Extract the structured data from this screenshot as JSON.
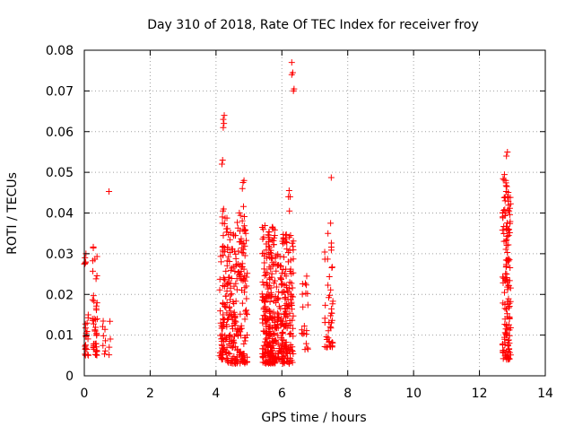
{
  "chart_data": {
    "type": "scatter",
    "title": "Day 310 of 2018, Rate Of TEC Index for receiver froy",
    "xlabel": "GPS time / hours",
    "ylabel": "ROTI / TECUs",
    "xlim": [
      0,
      14
    ],
    "ylim": [
      0,
      0.08
    ],
    "xticks": [
      0,
      2,
      4,
      6,
      8,
      10,
      12,
      14
    ],
    "xtick_labels": [
      "0",
      "2",
      "4",
      "6",
      "8",
      "10",
      "12",
      "14"
    ],
    "yticks": [
      0,
      0.01,
      0.02,
      0.03,
      0.04,
      0.05,
      0.06,
      0.07,
      0.08
    ],
    "ytick_labels": [
      "0",
      "0.01",
      "0.02",
      "0.03",
      "0.04",
      "0.05",
      "0.06",
      "0.07",
      "0.08"
    ],
    "grid": true,
    "marker": "+",
    "marker_color": "#ff0000",
    "clusters": [
      {
        "x": [
          0.0,
          0.12
        ],
        "y": [
          0.005,
          0.015
        ],
        "n": 20
      },
      {
        "x": [
          0.0,
          0.05
        ],
        "y": [
          0.027,
          0.03
        ],
        "n": 3
      },
      {
        "x": [
          0.25,
          0.4
        ],
        "y": [
          0.005,
          0.032
        ],
        "n": 45
      },
      {
        "x": [
          0.5,
          0.8
        ],
        "y": [
          0.005,
          0.014
        ],
        "n": 12
      },
      {
        "x": [
          4.1,
          4.35
        ],
        "y": [
          0.004,
          0.04
        ],
        "n": 90
      },
      {
        "x": [
          4.35,
          4.7
        ],
        "y": [
          0.003,
          0.038
        ],
        "n": 110
      },
      {
        "x": [
          4.7,
          4.95
        ],
        "y": [
          0.003,
          0.042
        ],
        "n": 90
      },
      {
        "x": [
          5.4,
          5.8
        ],
        "y": [
          0.003,
          0.037
        ],
        "n": 230
      },
      {
        "x": [
          5.8,
          6.0
        ],
        "y": [
          0.004,
          0.03
        ],
        "n": 70
      },
      {
        "x": [
          6.0,
          6.35
        ],
        "y": [
          0.003,
          0.035
        ],
        "n": 140
      },
      {
        "x": [
          6.6,
          6.8
        ],
        "y": [
          0.006,
          0.025
        ],
        "n": 20
      },
      {
        "x": [
          7.3,
          7.55
        ],
        "y": [
          0.007,
          0.035
        ],
        "n": 45
      },
      {
        "x": [
          12.7,
          12.95
        ],
        "y": [
          0.004,
          0.05
        ],
        "n": 140
      }
    ],
    "points": [
      {
        "x": 0.0,
        "y": 0.0275
      },
      {
        "x": 0.02,
        "y": 0.029
      },
      {
        "x": 0.05,
        "y": 0.03
      },
      {
        "x": 0.75,
        "y": 0.0453
      },
      {
        "x": 4.18,
        "y": 0.052
      },
      {
        "x": 4.2,
        "y": 0.053
      },
      {
        "x": 4.22,
        "y": 0.061
      },
      {
        "x": 4.24,
        "y": 0.062
      },
      {
        "x": 4.22,
        "y": 0.063
      },
      {
        "x": 4.25,
        "y": 0.064
      },
      {
        "x": 4.21,
        "y": 0.0405
      },
      {
        "x": 4.23,
        "y": 0.041
      },
      {
        "x": 4.8,
        "y": 0.046
      },
      {
        "x": 4.82,
        "y": 0.0475
      },
      {
        "x": 4.85,
        "y": 0.048
      },
      {
        "x": 6.2,
        "y": 0.044
      },
      {
        "x": 6.22,
        "y": 0.0455
      },
      {
        "x": 6.25,
        "y": 0.044
      },
      {
        "x": 6.23,
        "y": 0.0405
      },
      {
        "x": 6.3,
        "y": 0.074
      },
      {
        "x": 6.33,
        "y": 0.0745
      },
      {
        "x": 6.3,
        "y": 0.077
      },
      {
        "x": 6.35,
        "y": 0.07
      },
      {
        "x": 6.37,
        "y": 0.0705
      },
      {
        "x": 7.5,
        "y": 0.0487
      },
      {
        "x": 7.48,
        "y": 0.0375
      },
      {
        "x": 7.4,
        "y": 0.035
      },
      {
        "x": 12.82,
        "y": 0.054
      },
      {
        "x": 12.85,
        "y": 0.055
      },
      {
        "x": 12.8,
        "y": 0.048
      },
      {
        "x": 12.83,
        "y": 0.0465
      },
      {
        "x": 12.78,
        "y": 0.043
      },
      {
        "x": 12.85,
        "y": 0.044
      },
      {
        "x": 12.8,
        "y": 0.04
      },
      {
        "x": 12.9,
        "y": 0.0405
      }
    ]
  }
}
